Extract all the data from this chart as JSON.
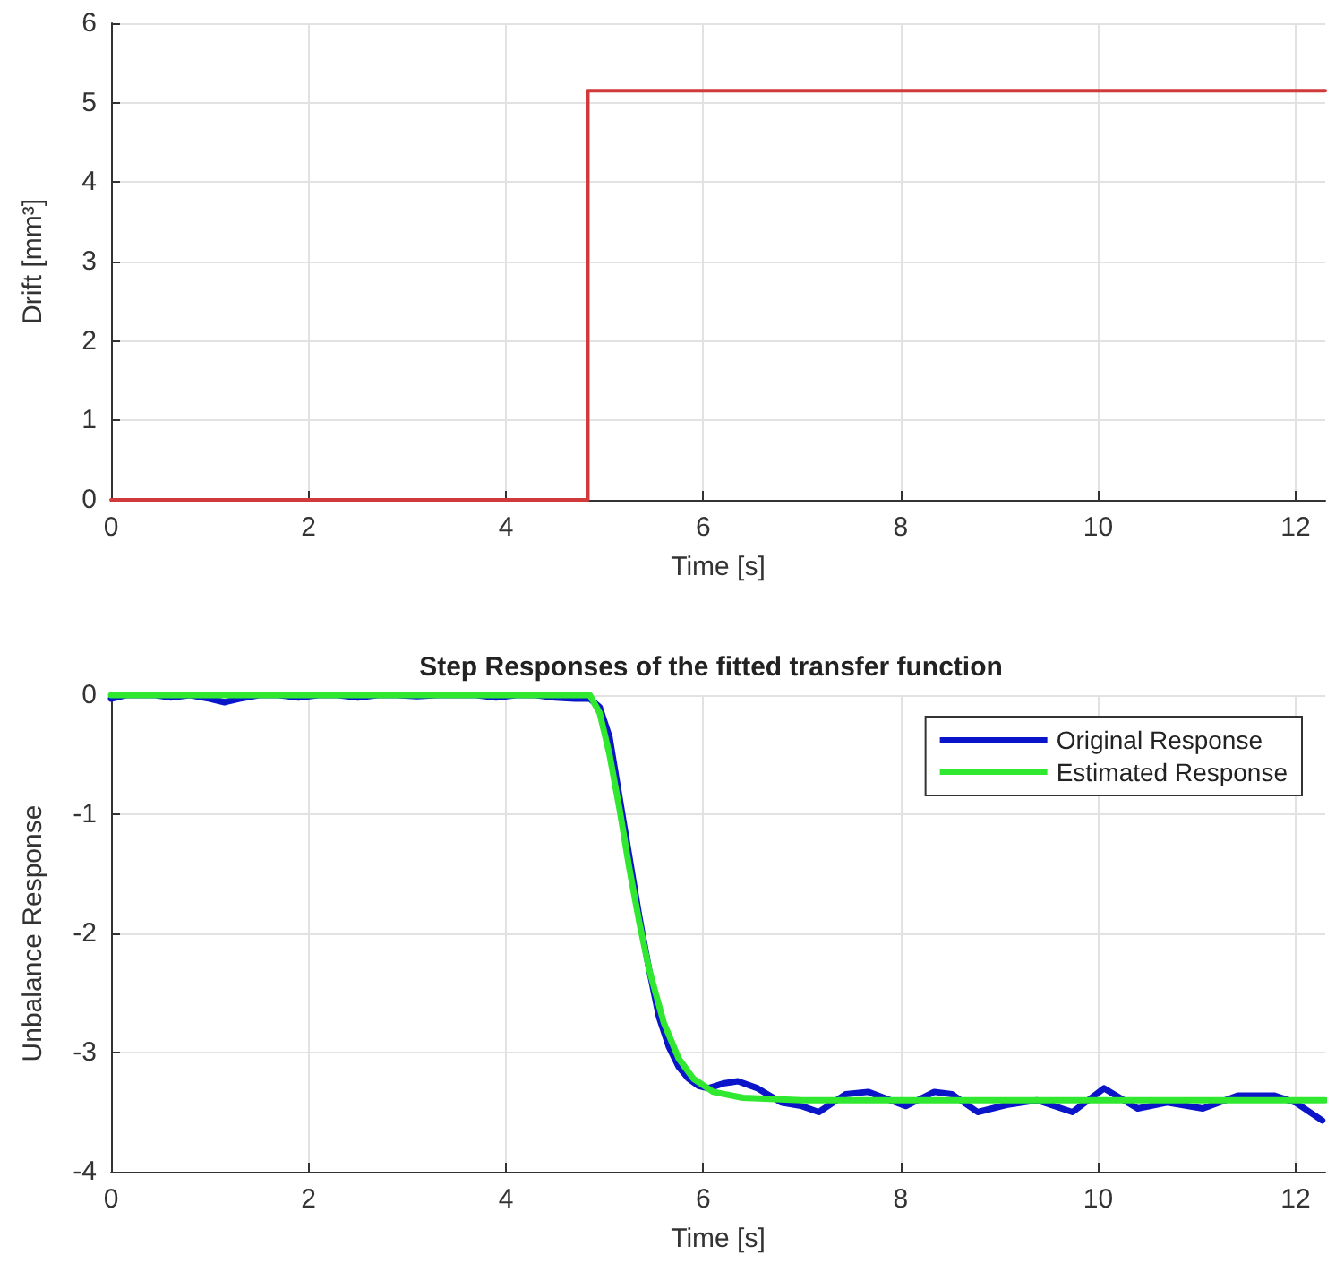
{
  "chart_data": [
    {
      "type": "step",
      "xlabel": "Time [s]",
      "ylabel": "Drift [mm³]",
      "xlim": [
        0,
        12.3
      ],
      "xticks": [
        0,
        2,
        4,
        6,
        8,
        10,
        12
      ],
      "ylim": [
        0,
        6
      ],
      "yticks": [
        0,
        1,
        2,
        3,
        4,
        5,
        6
      ],
      "grid": true,
      "legend": false,
      "series": [
        {
          "color": "#d03a3a",
          "x": [
            0,
            4.83,
            12.3
          ],
          "values": [
            0,
            0,
            5.15
          ]
        }
      ]
    },
    {
      "type": "line",
      "title": "Step Responses of the fitted transfer function",
      "xlabel": "Time [s]",
      "ylabel": "Unbalance Response",
      "xlim": [
        0,
        12.3
      ],
      "xticks": [
        0,
        2,
        4,
        6,
        8,
        10,
        12
      ],
      "ylim": [
        -4,
        0
      ],
      "yticks": [
        -4,
        -3,
        -2,
        -1,
        0
      ],
      "grid": true,
      "legend": "top right",
      "series": [
        {
          "name": "Original Response",
          "color": "#0a14c8",
          "x": [
            0,
            0.15,
            0.3,
            0.45,
            0.6,
            0.8,
            1.0,
            1.15,
            1.3,
            1.5,
            1.7,
            1.9,
            2.1,
            2.3,
            2.5,
            2.7,
            2.9,
            3.1,
            3.3,
            3.5,
            3.7,
            3.9,
            4.1,
            4.3,
            4.5,
            4.7,
            4.85,
            4.95,
            5.05,
            5.15,
            5.25,
            5.35,
            5.45,
            5.55,
            5.65,
            5.75,
            5.85,
            5.95,
            6.05,
            6.2,
            6.35,
            6.55,
            6.79,
            7.0,
            7.17,
            7.44,
            7.67,
            8.05,
            8.34,
            8.52,
            8.78,
            9.07,
            9.38,
            9.74,
            10.06,
            10.4,
            10.7,
            11.06,
            11.42,
            11.78,
            12.0,
            12.27
          ],
          "values": [
            -0.03,
            0,
            0,
            0.0,
            -0.02,
            0,
            -0.03,
            -0.06,
            -0.03,
            0.0,
            0,
            -0.02,
            0,
            0,
            -0.02,
            0,
            0,
            -0.01,
            0,
            0,
            0,
            -0.02,
            0,
            0,
            -0.02,
            -0.03,
            -0.03,
            -0.1,
            -0.35,
            -0.85,
            -1.35,
            -1.85,
            -2.3,
            -2.7,
            -2.95,
            -3.12,
            -3.22,
            -3.28,
            -3.3,
            -3.26,
            -3.24,
            -3.3,
            -3.42,
            -3.45,
            -3.5,
            -3.35,
            -3.33,
            -3.45,
            -3.33,
            -3.35,
            -3.5,
            -3.44,
            -3.4,
            -3.5,
            -3.3,
            -3.47,
            -3.42,
            -3.47,
            -3.36,
            -3.36,
            -3.42,
            -3.57
          ]
        },
        {
          "name": "Estimated Response",
          "color": "#30e830",
          "x": [
            0,
            4.85,
            4.95,
            5.05,
            5.15,
            5.25,
            5.35,
            5.45,
            5.6,
            5.75,
            5.9,
            6.1,
            6.4,
            7.0,
            12.3
          ],
          "values": [
            0,
            0,
            -0.15,
            -0.5,
            -0.95,
            -1.45,
            -1.9,
            -2.3,
            -2.75,
            -3.05,
            -3.22,
            -3.33,
            -3.38,
            -3.4,
            -3.4
          ]
        }
      ]
    }
  ]
}
